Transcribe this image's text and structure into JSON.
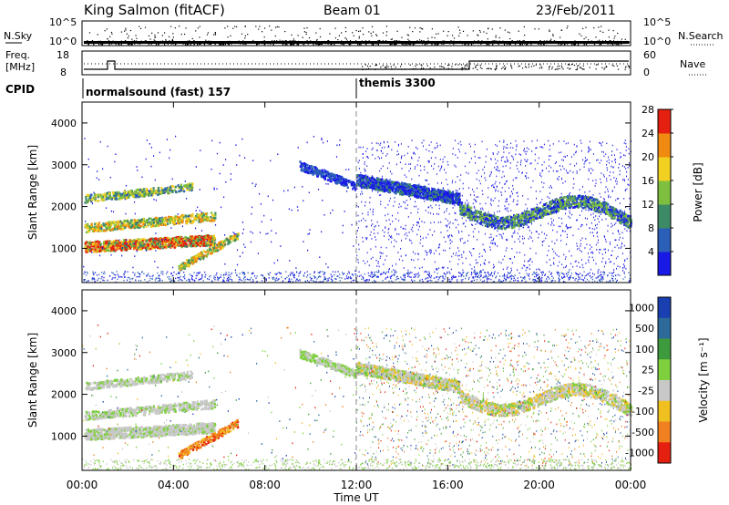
{
  "header": {
    "station": "King Salmon (fitACF)",
    "beam": "Beam 01",
    "date": "23/Feb/2011"
  },
  "noise_panel": {
    "left_label": "N.Sky",
    "right_label": "N.Search",
    "ticks_left": [
      "10^5",
      "10^0"
    ],
    "ticks_right": [
      "10^5",
      "10^0"
    ]
  },
  "freq_panel": {
    "left_label_1": "Freq.",
    "left_label_2": "[MHz]",
    "right_label": "Nave",
    "ticks_left": [
      "18",
      "8"
    ],
    "ticks_right": [
      "60",
      "0"
    ]
  },
  "cpid_panel": {
    "label": "CPID",
    "modes": [
      {
        "name": "normalsound (fast) 157",
        "start": "00:00"
      },
      {
        "name": "themis 3300",
        "start": "12:00"
      }
    ]
  },
  "chart_data": [
    {
      "type": "heatmap",
      "quantity": "power",
      "ylabel": "Slant Range [km]",
      "ylim": [
        180,
        4500
      ],
      "yticks": [
        1000,
        2000,
        3000,
        4000
      ],
      "xlim_hours": [
        0,
        24
      ],
      "colorbar": {
        "label": "Power [dB]",
        "ticks": [
          "4",
          "8",
          "12",
          "16",
          "20",
          "24",
          "28"
        ],
        "colors": [
          "#1a1ae6",
          "#2b5fb8",
          "#3d8a66",
          "#7fbf3f",
          "#f0d020",
          "#f08a10",
          "#e62010"
        ]
      }
    },
    {
      "type": "heatmap",
      "quantity": "velocity",
      "ylabel": "Slant Range [km]",
      "ylim": [
        180,
        4500
      ],
      "yticks": [
        1000,
        2000,
        3000,
        4000
      ],
      "xlim_hours": [
        0,
        24
      ],
      "colorbar": {
        "label": "Velocity [m s⁻¹]",
        "ticks": [
          "1000",
          "500",
          "100",
          "25",
          "-25",
          "-100",
          "-500",
          "-1000"
        ],
        "colors": [
          "#1a3fb0",
          "#2d6a9a",
          "#3d9a3d",
          "#7fd03f",
          "#c8c8c8",
          "#f0c020",
          "#f08020",
          "#e62010"
        ]
      }
    }
  ],
  "x_axis": {
    "ticks": [
      "00:00",
      "04:00",
      "08:00",
      "12:00",
      "16:00",
      "20:00",
      "00:00"
    ],
    "label": "Time UT"
  }
}
